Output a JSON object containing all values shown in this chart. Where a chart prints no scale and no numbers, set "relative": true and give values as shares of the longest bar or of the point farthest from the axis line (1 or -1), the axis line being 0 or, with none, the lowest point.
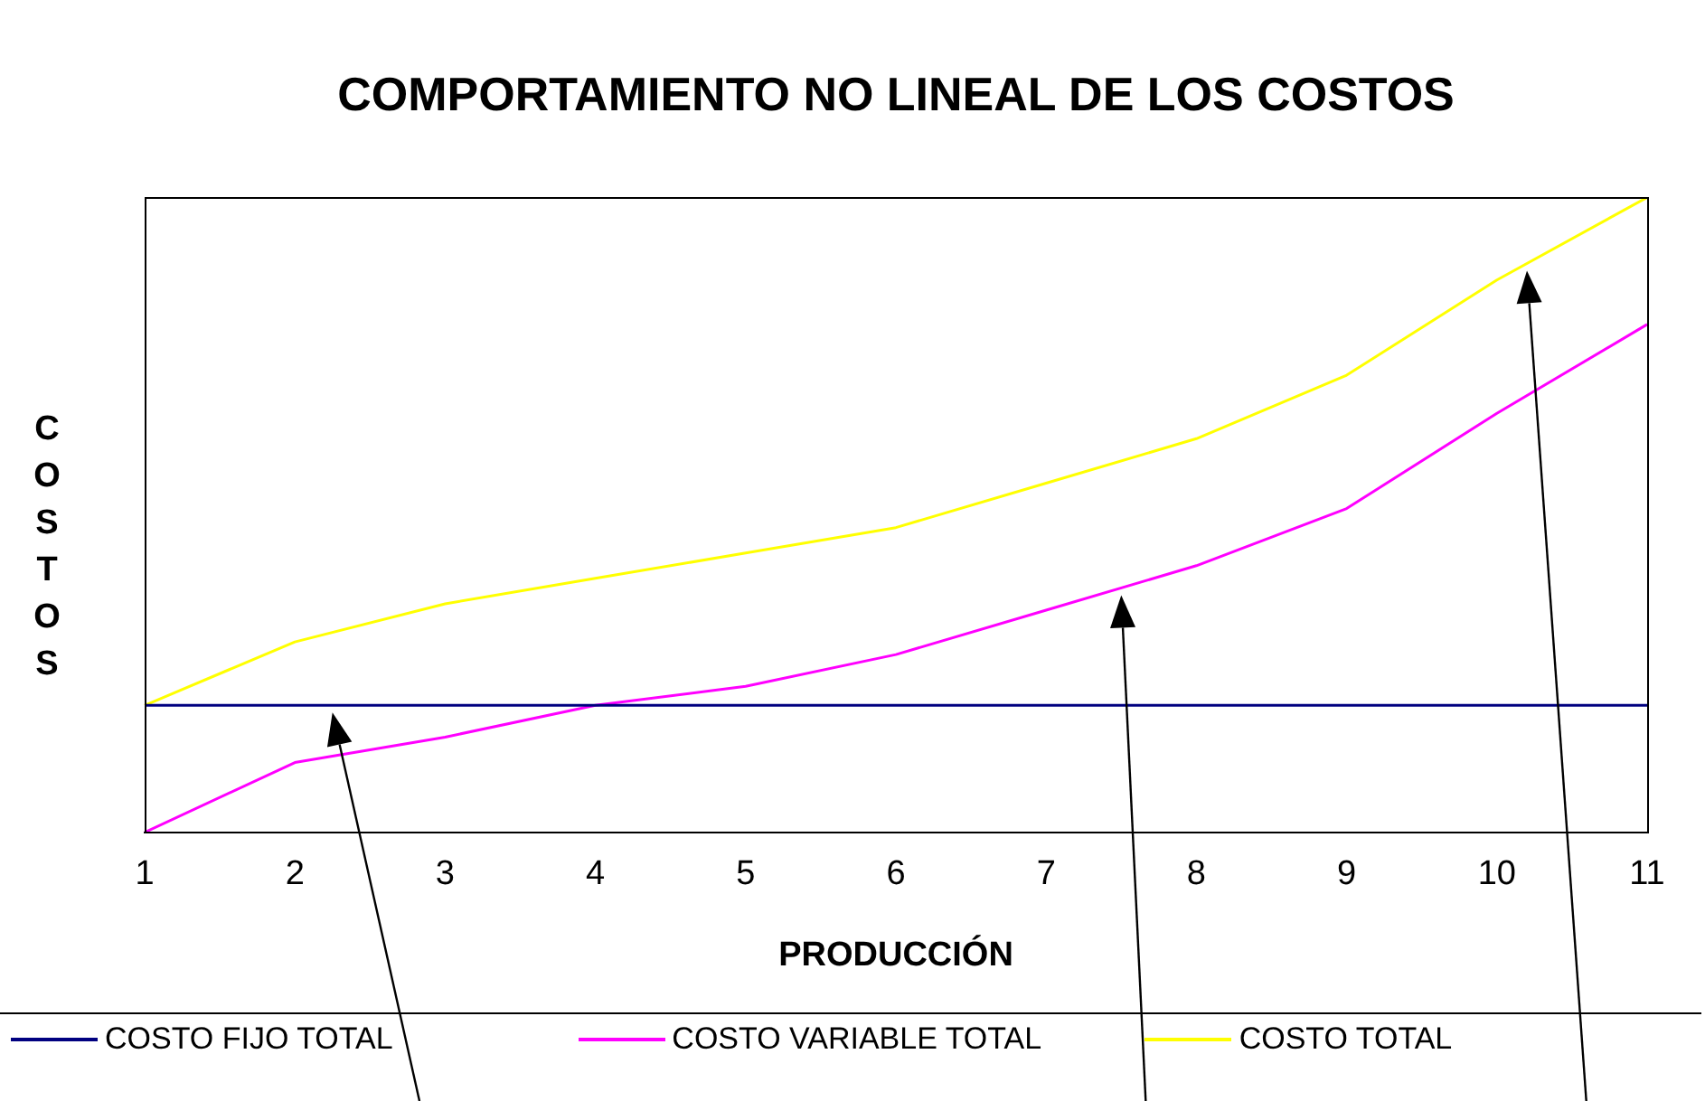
{
  "chart_data": {
    "type": "line",
    "title": "COMPORTAMIENTO NO LINEAL DE LOS COSTOS",
    "xlabel": "PRODUCCIÓN",
    "ylabel": "COSTOS",
    "relative": true,
    "legend": "bottom",
    "grid": false,
    "marker": "none",
    "line_style": "solid",
    "categories": [
      "1",
      "2",
      "3",
      "4",
      "5",
      "6",
      "7",
      "8",
      "9",
      "10",
      "11"
    ],
    "series": [
      {
        "name": "COSTO FIJO TOTAL",
        "color": "#000080",
        "values": [
          0.2,
          0.2,
          0.2,
          0.2,
          0.2,
          0.2,
          0.2,
          0.2,
          0.2,
          0.2,
          0.2
        ]
      },
      {
        "name": "COSTO VARIABLE TOTAL",
        "color": "#ff00ff",
        "values": [
          0,
          0.11,
          0.15,
          0.2,
          0.23,
          0.28,
          0.35,
          0.42,
          0.51,
          0.66,
          0.8
        ]
      },
      {
        "name": "COSTO TOTAL",
        "color": "#ffff00",
        "values": [
          0.2,
          0.3,
          0.36,
          0.4,
          0.44,
          0.48,
          0.55,
          0.62,
          0.72,
          0.87,
          1
        ]
      }
    ]
  }
}
